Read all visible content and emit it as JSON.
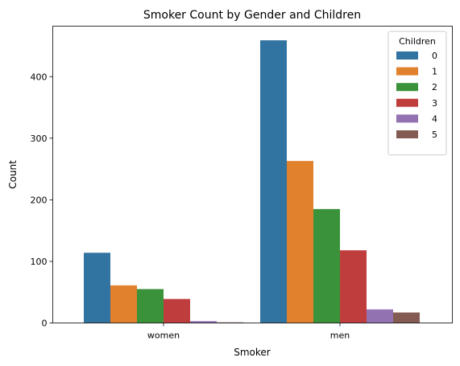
{
  "chart_data": {
    "type": "bar",
    "title": "Smoker Count by Gender and Children",
    "xlabel": "Smoker",
    "ylabel": "Count",
    "categories": [
      "women",
      "men"
    ],
    "ylim": [
      0,
      482
    ],
    "yticks": [
      0,
      100,
      200,
      300,
      400
    ],
    "grid": false,
    "legend": {
      "title": "Children",
      "position": "top-right"
    },
    "series": [
      {
        "name": "0",
        "color": "#3274a1",
        "values": [
          114,
          459
        ]
      },
      {
        "name": "1",
        "color": "#e1812c",
        "values": [
          61,
          263
        ]
      },
      {
        "name": "2",
        "color": "#3a923a",
        "values": [
          55,
          185
        ]
      },
      {
        "name": "3",
        "color": "#c03d3e",
        "values": [
          39,
          118
        ]
      },
      {
        "name": "4",
        "color": "#9372b2",
        "values": [
          3,
          22
        ]
      },
      {
        "name": "5",
        "color": "#845b53",
        "values": [
          1,
          17
        ]
      }
    ]
  }
}
